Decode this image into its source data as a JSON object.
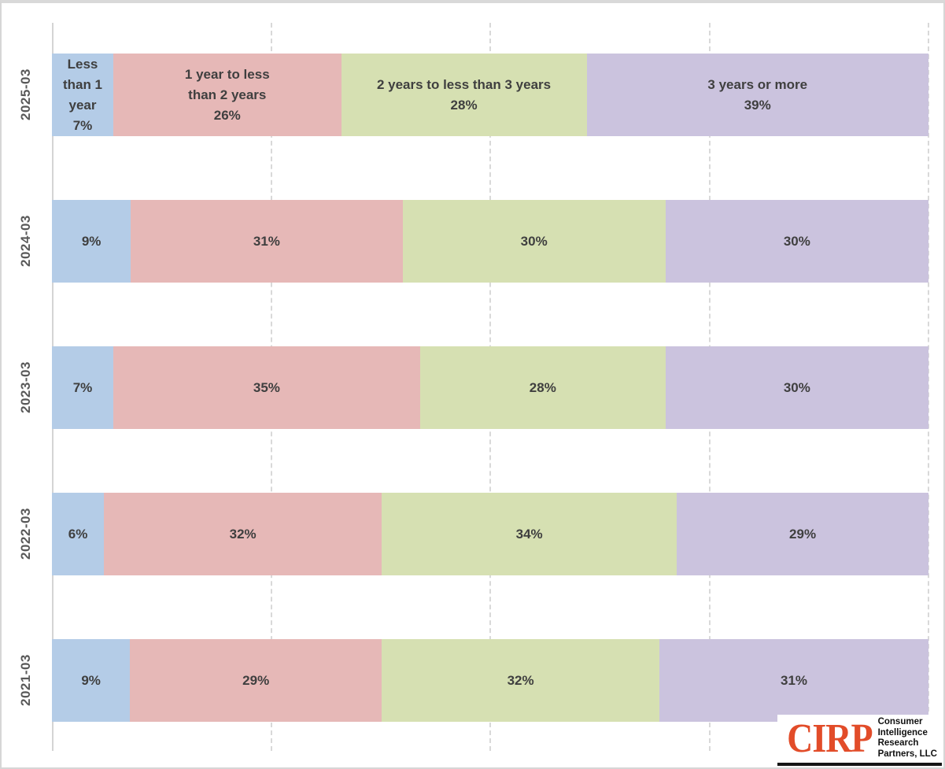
{
  "chart_data": {
    "type": "bar",
    "orientation": "horizontal",
    "stacked": true,
    "value_unit": "%",
    "xlim": [
      0,
      100
    ],
    "gridlines_percent": [
      25,
      50,
      75,
      100
    ],
    "grid_style": "dashed-vertical",
    "legend_position": "none",
    "categories": [
      "2025-03",
      "2024-03",
      "2023-03",
      "2022-03",
      "2021-03"
    ],
    "series": [
      {
        "name": "Less than 1 year",
        "color": "#b4cce7",
        "values": [
          7,
          9,
          7,
          6,
          9
        ]
      },
      {
        "name": "1 year to less than 2 years",
        "color": "#e6b8b7",
        "values": [
          26,
          31,
          35,
          32,
          29
        ]
      },
      {
        "name": "2 years to less than 3 years",
        "color": "#d6e0b2",
        "values": [
          28,
          30,
          28,
          34,
          32
        ]
      },
      {
        "name": "3 years or more",
        "color": "#cbc3de",
        "values": [
          39,
          30,
          30,
          29,
          31
        ]
      }
    ],
    "first_row_label_lines": [
      [
        "Less",
        "than 1",
        "year"
      ],
      [
        "1 year to less",
        "than 2 years"
      ],
      [
        "2 years to less than 3 years"
      ],
      [
        "3 years or more"
      ]
    ],
    "data_label_color": "#3f3f3f",
    "axis_label_color": "#595959"
  },
  "logo": {
    "brand": "CIRP",
    "brand_color": "#e24c29",
    "tagline_lines": [
      "Consumer",
      "Intelligence",
      "Research",
      "Partners, LLC"
    ]
  }
}
